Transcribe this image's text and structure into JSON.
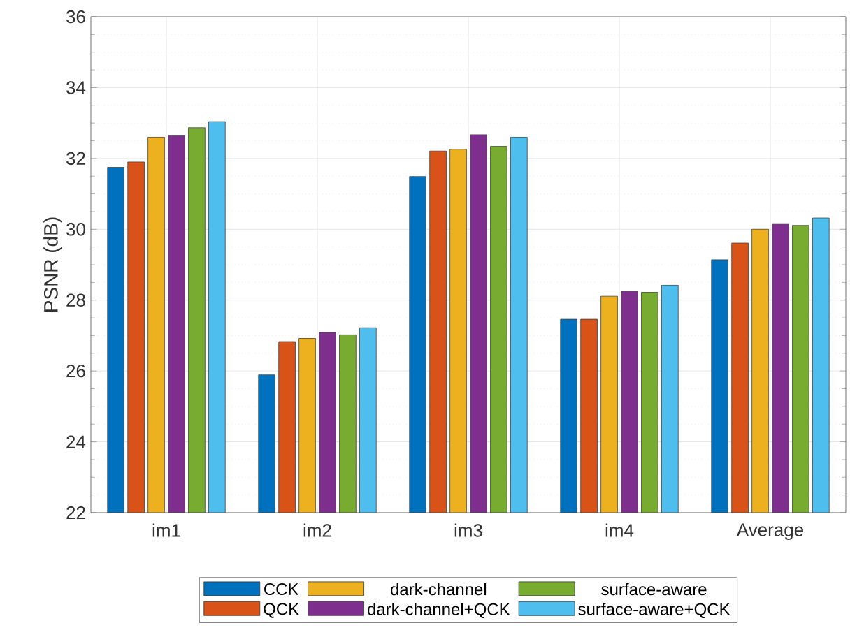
{
  "chart_data": {
    "type": "bar",
    "ylabel": "PSNR (dB)",
    "categories": [
      "im1",
      "im2",
      "im3",
      "im4",
      "Average"
    ],
    "series": [
      {
        "name": "CCK",
        "color": "#0072bd",
        "values": [
          31.75,
          25.89,
          31.49,
          27.46,
          29.14
        ]
      },
      {
        "name": "QCK",
        "color": "#d95319",
        "values": [
          31.9,
          26.83,
          32.21,
          27.46,
          29.61
        ]
      },
      {
        "name": "dark-channel",
        "color": "#edb120",
        "values": [
          32.6,
          26.92,
          32.26,
          28.11,
          30.0
        ]
      },
      {
        "name": "dark-channel+QCK",
        "color": "#7e2f8e",
        "values": [
          32.64,
          27.09,
          32.67,
          28.26,
          30.16
        ]
      },
      {
        "name": "surface-aware",
        "color": "#77ac30",
        "values": [
          32.87,
          27.02,
          32.34,
          28.22,
          30.11
        ]
      },
      {
        "name": "surface-aware+QCK",
        "color": "#4dbeee",
        "values": [
          33.04,
          27.22,
          32.6,
          28.42,
          30.32
        ]
      }
    ],
    "ylim": [
      22,
      36
    ],
    "yticks": [
      22,
      24,
      26,
      28,
      30,
      32,
      34,
      36
    ],
    "grid": true,
    "legend": "bottom"
  }
}
